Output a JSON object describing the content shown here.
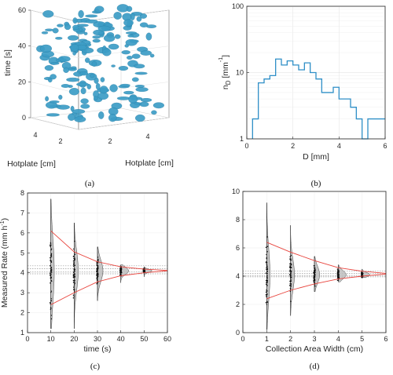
{
  "colors": {
    "blob": "#3c9dc6",
    "blob_dark": "#2a7fa6",
    "hist": "#2f8fc7",
    "trend": "#e8443d",
    "mean": "#9a9a9a",
    "dots": "#111111",
    "violin": "#bdbdbd"
  },
  "chart_data": [
    {
      "panel": "a",
      "type": "scatter",
      "caption": "(a)",
      "zlabel": "time [s]",
      "xlabel": "Hotplate [cm]",
      "ylabel": "Hotplate [cm]",
      "zticks": [
        "0",
        "20",
        "40",
        "60"
      ],
      "xticks": [
        "4",
        "2"
      ],
      "yticks": [
        "2",
        "4"
      ],
      "zlim": [
        0,
        60
      ],
      "note": "3D isosurface rendering of drops on a hotplate over time"
    },
    {
      "panel": "b",
      "type": "bar",
      "caption": "(b)",
      "xlabel": "D [mm]",
      "ylabel": "n_D [mm⁻¹]",
      "ylabel_base": "n",
      "ylabel_sub": "D",
      "ylabel_unit": " [mm",
      "ylabel_sup": "-1",
      "ylabel_close": "]",
      "scale_y": "log",
      "xlim": [
        0,
        6
      ],
      "ylim": [
        1,
        100
      ],
      "xticks": [
        "0",
        "2",
        "4",
        "6"
      ],
      "yticks": [
        "1",
        "10",
        "100"
      ],
      "bin_edges": [
        0.25,
        0.5,
        0.75,
        1.0,
        1.25,
        1.5,
        1.75,
        2.0,
        2.25,
        2.5,
        2.75,
        3.0,
        3.25,
        3.5,
        3.75,
        4.0,
        4.25,
        4.5,
        4.75,
        5.0,
        5.25,
        5.5,
        5.75,
        6.0
      ],
      "values": [
        2,
        7,
        8,
        9,
        16,
        13,
        15,
        13,
        11,
        14,
        10,
        8,
        5,
        5,
        6,
        4,
        4,
        3,
        2,
        1,
        2,
        2,
        2
      ]
    },
    {
      "panel": "c",
      "type": "scatter",
      "caption": "(c)",
      "xlabel": "time (s)",
      "ylabel": "Measured Rate (mm h⁻¹)",
      "ylabel_main": "Measured Rate (mm h",
      "ylabel_sup": "-1",
      "ylabel_close": ")",
      "xlim": [
        0,
        60
      ],
      "ylim": [
        1,
        8
      ],
      "xticks": [
        "0",
        "10",
        "20",
        "30",
        "40",
        "50",
        "60"
      ],
      "yticks": [
        "1",
        "2",
        "3",
        "4",
        "5",
        "6",
        "7",
        "8"
      ],
      "groups": [
        {
          "x": 10,
          "min": 1.2,
          "max": 7.7,
          "spread": 1.6
        },
        {
          "x": 20,
          "min": 1.2,
          "max": 6.5,
          "spread": 1.0
        },
        {
          "x": 30,
          "min": 2.6,
          "max": 5.3,
          "spread": 0.55
        },
        {
          "x": 40,
          "min": 3.5,
          "max": 4.4,
          "spread": 0.18
        },
        {
          "x": 50,
          "min": 3.8,
          "max": 4.3,
          "spread": 0.08
        }
      ],
      "upper_envelope": {
        "x": [
          10,
          20,
          30,
          40,
          50,
          60
        ],
        "y": [
          6.1,
          5.05,
          4.55,
          4.3,
          4.18,
          4.12
        ]
      },
      "lower_envelope": {
        "x": [
          10,
          20,
          30,
          40,
          50,
          60
        ],
        "y": [
          2.4,
          3.0,
          3.55,
          3.85,
          4.0,
          4.1
        ]
      },
      "mean_lines": [
        4.35,
        4.2,
        4.05,
        3.95
      ]
    },
    {
      "panel": "d",
      "type": "scatter",
      "caption": "(d)",
      "xlabel": "Collection Area Width (cm)",
      "ylabel": "",
      "xlim": [
        0,
        6
      ],
      "ylim": [
        0,
        10
      ],
      "xticks": [
        "0",
        "1",
        "2",
        "3",
        "4",
        "5",
        "6"
      ],
      "yticks": [
        "0",
        "2",
        "4",
        "6",
        "8",
        "10"
      ],
      "groups": [
        {
          "x": 1,
          "min": 0.2,
          "max": 9.2,
          "spread": 1.9
        },
        {
          "x": 2,
          "min": 1.2,
          "max": 7.6,
          "spread": 1.1
        },
        {
          "x": 3,
          "min": 2.9,
          "max": 5.4,
          "spread": 0.6
        },
        {
          "x": 4,
          "min": 3.6,
          "max": 4.8,
          "spread": 0.3
        },
        {
          "x": 5,
          "min": 3.9,
          "max": 4.5,
          "spread": 0.15
        }
      ],
      "upper_envelope": {
        "x": [
          1,
          2,
          3,
          4,
          5,
          6
        ],
        "y": [
          6.4,
          5.7,
          5.1,
          4.6,
          4.35,
          4.2
        ]
      },
      "lower_envelope": {
        "x": [
          1,
          2,
          3,
          4,
          5,
          6
        ],
        "y": [
          2.4,
          3.0,
          3.45,
          3.8,
          4.0,
          4.15
        ]
      },
      "mean_lines": [
        4.35,
        4.2,
        4.05,
        3.95
      ]
    }
  ]
}
